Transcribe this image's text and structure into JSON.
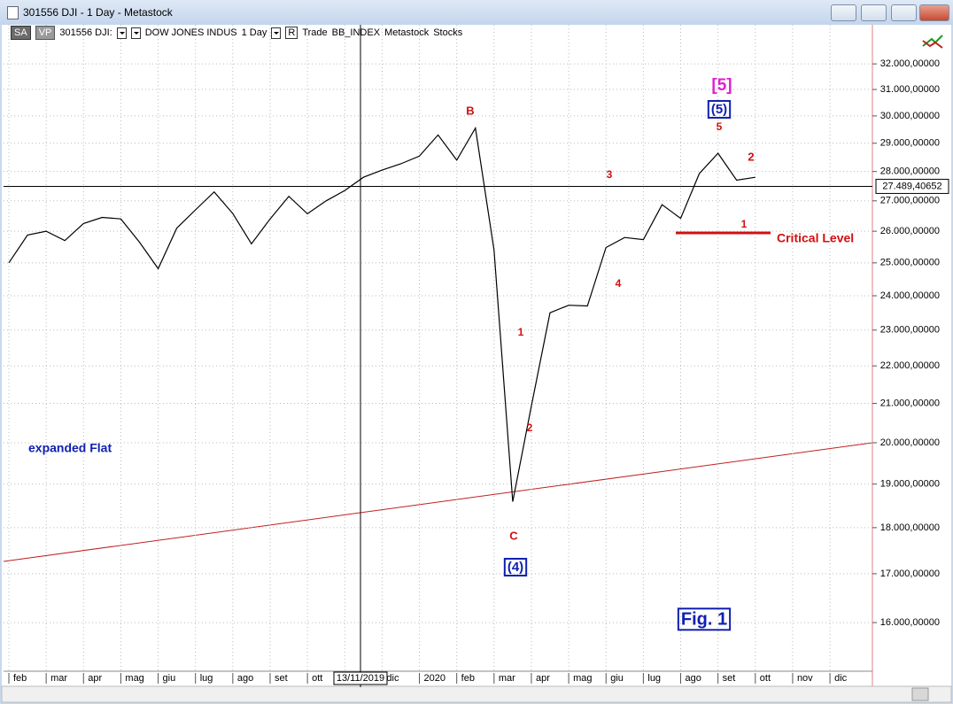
{
  "window": {
    "title": "301556 DJI - 1 Day - Metastock"
  },
  "toolbar": {
    "items": [
      "SA",
      "VP",
      "301556 DJI:",
      "DOW JONES INDUS",
      "1 Day",
      "R",
      "Trade",
      "BB_INDEX",
      "Metastock",
      "Stocks"
    ]
  },
  "chart_data": {
    "type": "line",
    "categories": [
      "feb",
      null,
      "mar",
      null,
      "apr",
      null,
      "mag",
      null,
      "giu",
      null,
      "lug",
      null,
      "ago",
      null,
      "set",
      null,
      "ott",
      null,
      null,
      null,
      "dic",
      null,
      "2020",
      null,
      "feb",
      null,
      "mar",
      null,
      "apr",
      null,
      "mag",
      null,
      "giu",
      null,
      "lug",
      null,
      "ago",
      null,
      "set",
      null,
      "ott",
      null,
      "nov",
      null,
      "dic",
      null
    ],
    "values": [
      25000,
      25880,
      26000,
      25700,
      26250,
      26450,
      26400,
      25650,
      24820,
      26100,
      26700,
      27300,
      26580,
      25600,
      26400,
      27150,
      26570,
      27000,
      27350,
      27800,
      28050,
      28270,
      28540,
      29300,
      28400,
      29550,
      25400,
      18590,
      20940,
      23500,
      23720,
      23700,
      25480,
      25800,
      25730,
      26870,
      26420,
      27930,
      28640,
      27700,
      27800,
      null,
      null,
      null,
      null,
      null
    ],
    "color": "#000000",
    "log_scale": true,
    "grid": true,
    "ylim": [
      15030,
      33590
    ],
    "yticks": [
      {
        "value": 16000,
        "label": "16.000,00000"
      },
      {
        "value": 17000,
        "label": "17.000,00000"
      },
      {
        "value": 18000,
        "label": "18.000,00000"
      },
      {
        "value": 19000,
        "label": "19.000,00000"
      },
      {
        "value": 20000,
        "label": "20.000,00000"
      },
      {
        "value": 21000,
        "label": "21.000,00000"
      },
      {
        "value": 22000,
        "label": "22.000,00000"
      },
      {
        "value": 23000,
        "label": "23.000,00000"
      },
      {
        "value": 24000,
        "label": "24.000,00000"
      },
      {
        "value": 25000,
        "label": "25.000,00000"
      },
      {
        "value": 26000,
        "label": "26.000,00000"
      },
      {
        "value": 27000,
        "label": "27.000,00000"
      },
      {
        "value": 28000,
        "label": "28.000,00000"
      },
      {
        "value": 29000,
        "label": "29.000,00000"
      },
      {
        "value": 30000,
        "label": "30.000,00000"
      },
      {
        "value": 31000,
        "label": "31.000,00000"
      },
      {
        "value": 32000,
        "label": "32.000,00000"
      }
    ],
    "crosshair": {
      "date": "13/11/2019",
      "price": {
        "value": 27489.40652,
        "label": "27.489,40652"
      }
    },
    "annotations": [
      {
        "text": "[5]",
        "color": "#e020d0"
      },
      {
        "text": "(5)",
        "color": "#1020b0"
      },
      {
        "text": "5",
        "color": "#d01010"
      },
      {
        "text": "B",
        "color": "#d01010"
      },
      {
        "text": "3",
        "color": "#d01010"
      },
      {
        "text": "2",
        "color": "#d01010"
      },
      {
        "text": "1",
        "color": "#d01010"
      },
      {
        "text": "Critical Level",
        "color": "#d01010"
      },
      {
        "text": "4",
        "color": "#d01010"
      },
      {
        "text": "1",
        "color": "#d01010"
      },
      {
        "text": "2",
        "color": "#d01010"
      },
      {
        "text": "C",
        "color": "#d01010"
      },
      {
        "text": "(4)",
        "color": "#1020b0"
      },
      {
        "text": "expanded Flat",
        "color": "#1020b0"
      },
      {
        "text": "Fig. 1",
        "color": "#1020b0"
      }
    ]
  }
}
